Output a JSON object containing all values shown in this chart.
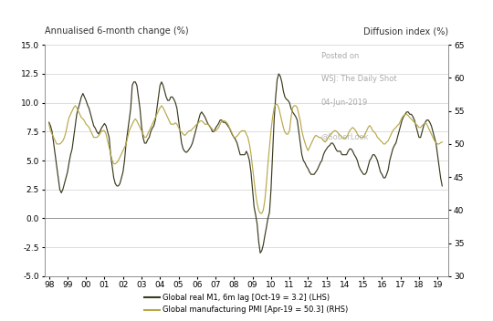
{
  "title_lhs": "Annualised 6-month change (%)",
  "title_rhs": "Diffusion index (%)",
  "watermark_line1": "Posted on",
  "watermark_line2": "WSJ: The Daily Shot",
  "watermark_line3": "04-Jun-2019",
  "watermark_line4": "@SoberLook",
  "legend_lhs": "Global real M1, 6m lag [Oct-19 = 3.2] (LHS)",
  "legend_rhs": "Global manufacturing PMI [Apr-19 = 50.3] (RHS)",
  "lhs_color": "#3a3a1e",
  "rhs_color": "#b8a84a",
  "lhs_ylim": [
    -5.0,
    15.0
  ],
  "rhs_ylim": [
    30,
    65
  ],
  "lhs_yticks": [
    -5.0,
    -2.5,
    0.0,
    2.5,
    5.0,
    7.5,
    10.0,
    12.5,
    15.0
  ],
  "rhs_yticks": [
    30,
    35,
    40,
    45,
    50,
    55,
    60,
    65
  ],
  "xtick_labels": [
    "98",
    "99",
    "00",
    "01",
    "02",
    "03",
    "04",
    "05",
    "06",
    "07",
    "08",
    "09",
    "10",
    "11",
    "12",
    "13",
    "14",
    "15",
    "16",
    "17",
    "18",
    "19"
  ],
  "xtick_positions": [
    1998,
    1999,
    2000,
    2001,
    2002,
    2003,
    2004,
    2005,
    2006,
    2007,
    2008,
    2009,
    2010,
    2011,
    2012,
    2013,
    2014,
    2015,
    2016,
    2017,
    2018,
    2019
  ],
  "lhs_x": [
    1998.0,
    1998.083,
    1998.167,
    1998.25,
    1998.333,
    1998.417,
    1998.5,
    1998.583,
    1998.667,
    1998.75,
    1998.833,
    1998.917,
    1999.0,
    1999.083,
    1999.167,
    1999.25,
    1999.333,
    1999.417,
    1999.5,
    1999.583,
    1999.667,
    1999.75,
    1999.833,
    1999.917,
    2000.0,
    2000.083,
    2000.167,
    2000.25,
    2000.333,
    2000.417,
    2000.5,
    2000.583,
    2000.667,
    2000.75,
    2000.833,
    2000.917,
    2001.0,
    2001.083,
    2001.167,
    2001.25,
    2001.333,
    2001.417,
    2001.5,
    2001.583,
    2001.667,
    2001.75,
    2001.833,
    2001.917,
    2002.0,
    2002.083,
    2002.167,
    2002.25,
    2002.333,
    2002.417,
    2002.5,
    2002.583,
    2002.667,
    2002.75,
    2002.833,
    2002.917,
    2003.0,
    2003.083,
    2003.167,
    2003.25,
    2003.333,
    2003.417,
    2003.5,
    2003.583,
    2003.667,
    2003.75,
    2003.833,
    2003.917,
    2004.0,
    2004.083,
    2004.167,
    2004.25,
    2004.333,
    2004.417,
    2004.5,
    2004.583,
    2004.667,
    2004.75,
    2004.833,
    2004.917,
    2005.0,
    2005.083,
    2005.167,
    2005.25,
    2005.333,
    2005.417,
    2005.5,
    2005.583,
    2005.667,
    2005.75,
    2005.833,
    2005.917,
    2006.0,
    2006.083,
    2006.167,
    2006.25,
    2006.333,
    2006.417,
    2006.5,
    2006.583,
    2006.667,
    2006.75,
    2006.833,
    2006.917,
    2007.0,
    2007.083,
    2007.167,
    2007.25,
    2007.333,
    2007.417,
    2007.5,
    2007.583,
    2007.667,
    2007.75,
    2007.833,
    2007.917,
    2008.0,
    2008.083,
    2008.167,
    2008.25,
    2008.333,
    2008.417,
    2008.5,
    2008.583,
    2008.667,
    2008.75,
    2008.833,
    2008.917,
    2009.0,
    2009.083,
    2009.167,
    2009.25,
    2009.333,
    2009.417,
    2009.5,
    2009.583,
    2009.667,
    2009.75,
    2009.833,
    2009.917,
    2010.0,
    2010.083,
    2010.167,
    2010.25,
    2010.333,
    2010.417,
    2010.5,
    2010.583,
    2010.667,
    2010.75,
    2010.833,
    2010.917,
    2011.0,
    2011.083,
    2011.167,
    2011.25,
    2011.333,
    2011.417,
    2011.5,
    2011.583,
    2011.667,
    2011.75,
    2011.833,
    2011.917,
    2012.0,
    2012.083,
    2012.167,
    2012.25,
    2012.333,
    2012.417,
    2012.5,
    2012.583,
    2012.667,
    2012.75,
    2012.833,
    2012.917,
    2013.0,
    2013.083,
    2013.167,
    2013.25,
    2013.333,
    2013.417,
    2013.5,
    2013.583,
    2013.667,
    2013.75,
    2013.833,
    2013.917,
    2014.0,
    2014.083,
    2014.167,
    2014.25,
    2014.333,
    2014.417,
    2014.5,
    2014.583,
    2014.667,
    2014.75,
    2014.833,
    2014.917,
    2015.0,
    2015.083,
    2015.167,
    2015.25,
    2015.333,
    2015.417,
    2015.5,
    2015.583,
    2015.667,
    2015.75,
    2015.833,
    2015.917,
    2016.0,
    2016.083,
    2016.167,
    2016.25,
    2016.333,
    2016.417,
    2016.5,
    2016.583,
    2016.667,
    2016.75,
    2016.833,
    2016.917,
    2017.0,
    2017.083,
    2017.167,
    2017.25,
    2017.333,
    2017.417,
    2017.5,
    2017.583,
    2017.667,
    2017.75,
    2017.833,
    2017.917,
    2018.0,
    2018.083,
    2018.167,
    2018.25,
    2018.333,
    2018.417,
    2018.5,
    2018.583,
    2018.667,
    2018.75,
    2018.833,
    2018.917,
    2019.0,
    2019.083,
    2019.167,
    2019.25
  ],
  "lhs_y": [
    8.3,
    8.0,
    7.5,
    6.5,
    5.5,
    4.5,
    3.5,
    2.5,
    2.2,
    2.5,
    3.0,
    3.5,
    4.0,
    4.8,
    5.5,
    6.0,
    7.0,
    8.0,
    9.0,
    9.5,
    10.0,
    10.5,
    10.8,
    10.5,
    10.2,
    9.8,
    9.5,
    9.0,
    8.5,
    8.0,
    7.8,
    7.5,
    7.3,
    7.5,
    7.8,
    8.0,
    8.2,
    8.0,
    7.5,
    7.0,
    5.5,
    4.5,
    3.5,
    3.0,
    2.8,
    2.8,
    3.0,
    3.5,
    4.0,
    5.0,
    6.5,
    7.5,
    8.5,
    9.5,
    11.5,
    11.8,
    11.8,
    11.5,
    10.5,
    9.5,
    8.0,
    7.0,
    6.5,
    6.5,
    6.8,
    7.0,
    7.5,
    7.8,
    8.0,
    8.5,
    9.5,
    10.5,
    11.5,
    11.8,
    11.5,
    11.0,
    10.5,
    10.2,
    10.2,
    10.5,
    10.5,
    10.3,
    10.0,
    9.5,
    8.5,
    7.5,
    6.5,
    6.0,
    5.8,
    5.7,
    5.8,
    6.0,
    6.2,
    6.5,
    7.0,
    7.5,
    8.0,
    8.5,
    9.0,
    9.2,
    9.0,
    8.8,
    8.5,
    8.2,
    8.0,
    7.8,
    7.5,
    7.5,
    7.8,
    8.0,
    8.2,
    8.5,
    8.5,
    8.3,
    8.3,
    8.2,
    8.0,
    7.8,
    7.5,
    7.2,
    7.0,
    6.8,
    6.5,
    6.0,
    5.5,
    5.5,
    5.5,
    5.5,
    5.8,
    5.5,
    5.0,
    4.0,
    2.5,
    1.0,
    0.3,
    -0.5,
    -2.0,
    -3.0,
    -2.8,
    -2.3,
    -1.5,
    -0.8,
    0.0,
    0.5,
    2.5,
    5.5,
    8.5,
    10.5,
    12.0,
    12.5,
    12.3,
    11.8,
    11.0,
    10.5,
    10.3,
    10.2,
    10.0,
    9.5,
    9.2,
    9.0,
    8.8,
    8.5,
    7.5,
    6.5,
    5.5,
    5.0,
    4.8,
    4.5,
    4.3,
    4.0,
    3.8,
    3.8,
    3.8,
    4.0,
    4.2,
    4.5,
    4.8,
    5.0,
    5.5,
    5.8,
    6.0,
    6.2,
    6.3,
    6.5,
    6.5,
    6.3,
    6.0,
    5.8,
    5.8,
    5.8,
    5.5,
    5.5,
    5.5,
    5.5,
    5.8,
    6.0,
    6.0,
    5.8,
    5.5,
    5.3,
    5.0,
    4.5,
    4.2,
    4.0,
    3.8,
    3.8,
    4.0,
    4.5,
    5.0,
    5.2,
    5.5,
    5.5,
    5.3,
    5.0,
    4.5,
    4.0,
    3.8,
    3.5,
    3.5,
    3.8,
    4.2,
    5.0,
    5.5,
    6.0,
    6.3,
    6.5,
    7.0,
    7.5,
    8.0,
    8.5,
    8.8,
    9.0,
    9.2,
    9.2,
    9.0,
    9.0,
    8.8,
    8.5,
    8.0,
    7.5,
    7.0,
    7.0,
    7.5,
    8.0,
    8.3,
    8.5,
    8.5,
    8.3,
    8.0,
    7.5,
    7.0,
    6.5,
    5.5,
    4.5,
    3.5,
    2.8
  ],
  "rhs_y": [
    53.0,
    52.0,
    51.5,
    51.0,
    50.5,
    50.0,
    50.0,
    50.0,
    50.2,
    50.5,
    51.0,
    51.8,
    53.0,
    54.0,
    54.5,
    55.0,
    55.5,
    55.8,
    55.5,
    55.0,
    54.5,
    54.0,
    53.8,
    53.5,
    53.0,
    52.8,
    52.5,
    52.0,
    51.5,
    51.0,
    51.0,
    51.0,
    51.2,
    51.5,
    52.0,
    52.0,
    52.0,
    51.5,
    50.5,
    49.5,
    48.5,
    47.5,
    47.0,
    47.0,
    47.2,
    47.5,
    48.0,
    48.5,
    49.0,
    49.5,
    50.0,
    51.0,
    52.0,
    52.5,
    53.0,
    53.5,
    53.8,
    53.5,
    53.0,
    52.5,
    52.0,
    51.5,
    51.0,
    51.0,
    51.5,
    52.0,
    52.5,
    53.0,
    53.5,
    54.0,
    54.5,
    55.0,
    55.5,
    55.8,
    55.5,
    55.0,
    54.5,
    54.0,
    53.5,
    53.0,
    53.0,
    53.0,
    53.2,
    53.0,
    52.5,
    52.0,
    51.8,
    51.5,
    51.3,
    51.5,
    51.8,
    52.0,
    52.0,
    52.3,
    52.5,
    52.8,
    53.0,
    53.2,
    53.5,
    53.5,
    53.3,
    53.0,
    53.0,
    53.0,
    52.8,
    52.5,
    52.2,
    52.0,
    52.0,
    52.2,
    52.5,
    53.0,
    53.5,
    53.5,
    53.5,
    53.3,
    53.0,
    52.5,
    52.0,
    51.5,
    51.0,
    51.0,
    51.2,
    51.5,
    51.8,
    52.0,
    52.0,
    52.0,
    51.5,
    51.0,
    50.0,
    48.5,
    46.5,
    44.5,
    42.5,
    41.0,
    40.0,
    39.5,
    39.5,
    40.0,
    41.5,
    44.0,
    47.0,
    49.5,
    52.0,
    54.0,
    55.5,
    56.0,
    56.0,
    55.5,
    54.5,
    53.5,
    52.5,
    51.8,
    51.5,
    51.5,
    52.0,
    54.0,
    55.5,
    55.8,
    55.8,
    55.5,
    54.5,
    53.5,
    52.0,
    51.0,
    50.2,
    49.5,
    49.0,
    49.5,
    50.0,
    50.5,
    51.0,
    51.3,
    51.2,
    51.0,
    51.0,
    50.8,
    50.5,
    50.3,
    50.5,
    51.0,
    51.2,
    51.5,
    51.8,
    52.0,
    52.0,
    51.8,
    51.5,
    51.3,
    51.0,
    50.8,
    50.8,
    51.0,
    51.5,
    52.0,
    52.3,
    52.5,
    52.3,
    52.0,
    51.5,
    51.2,
    51.0,
    51.0,
    51.0,
    51.5,
    52.0,
    52.5,
    52.8,
    52.5,
    52.0,
    51.8,
    51.5,
    51.0,
    50.8,
    50.5,
    50.3,
    50.0,
    50.0,
    50.3,
    50.5,
    51.0,
    51.5,
    52.0,
    52.3,
    52.5,
    52.8,
    53.0,
    53.5,
    54.0,
    54.3,
    54.5,
    54.5,
    54.3,
    54.0,
    53.8,
    53.5,
    53.3,
    53.0,
    52.8,
    52.5,
    52.5,
    52.8,
    53.0,
    53.2,
    53.0,
    52.5,
    52.0,
    51.5,
    51.0,
    50.5,
    50.2,
    50.0,
    50.0,
    50.2,
    50.3
  ]
}
